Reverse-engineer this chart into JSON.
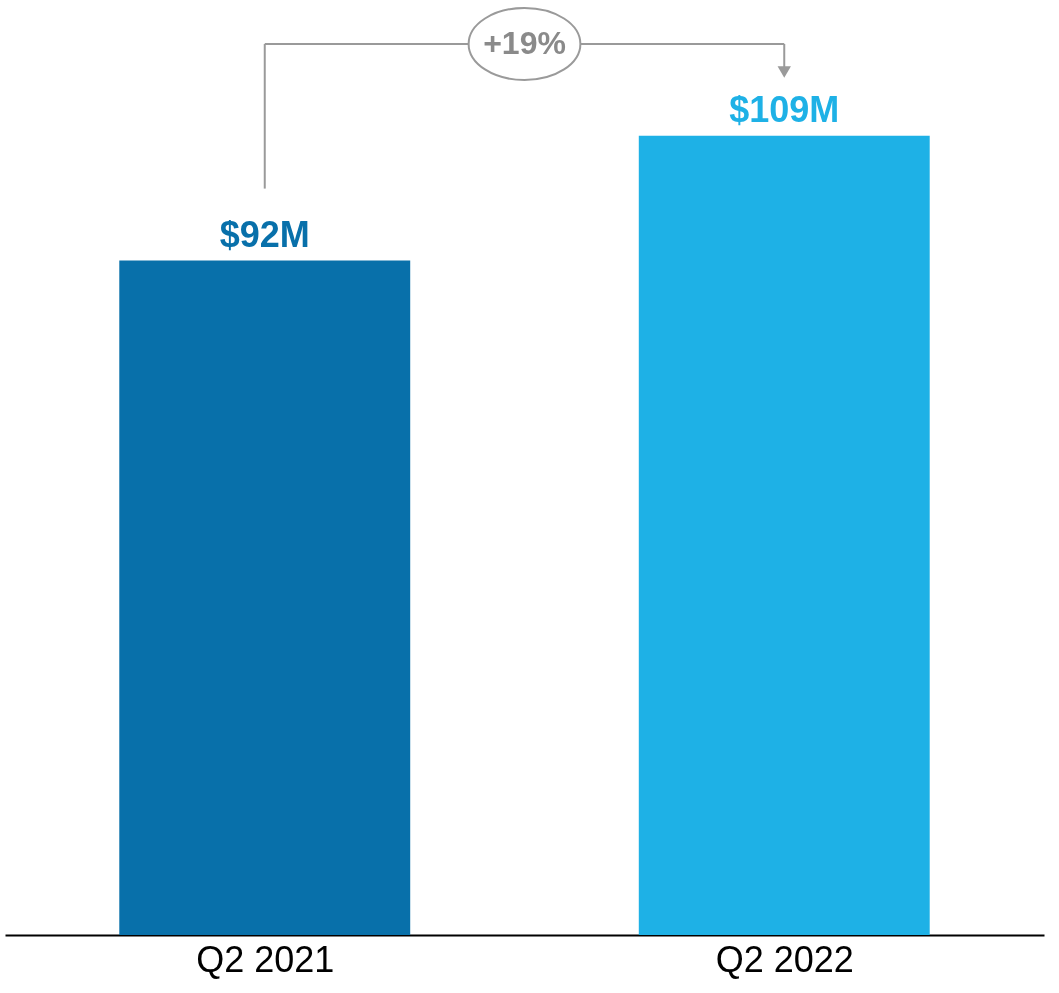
{
  "chart_data": {
    "type": "bar",
    "categories": [
      "Q2 2021",
      "Q2 2022"
    ],
    "values": [
      92,
      109
    ],
    "colors": [
      "#0870aa",
      "#1eb1e6"
    ],
    "value_labels": [
      "$92M",
      "$109M"
    ],
    "annotations": [
      "+19%"
    ],
    "grid": false
  }
}
